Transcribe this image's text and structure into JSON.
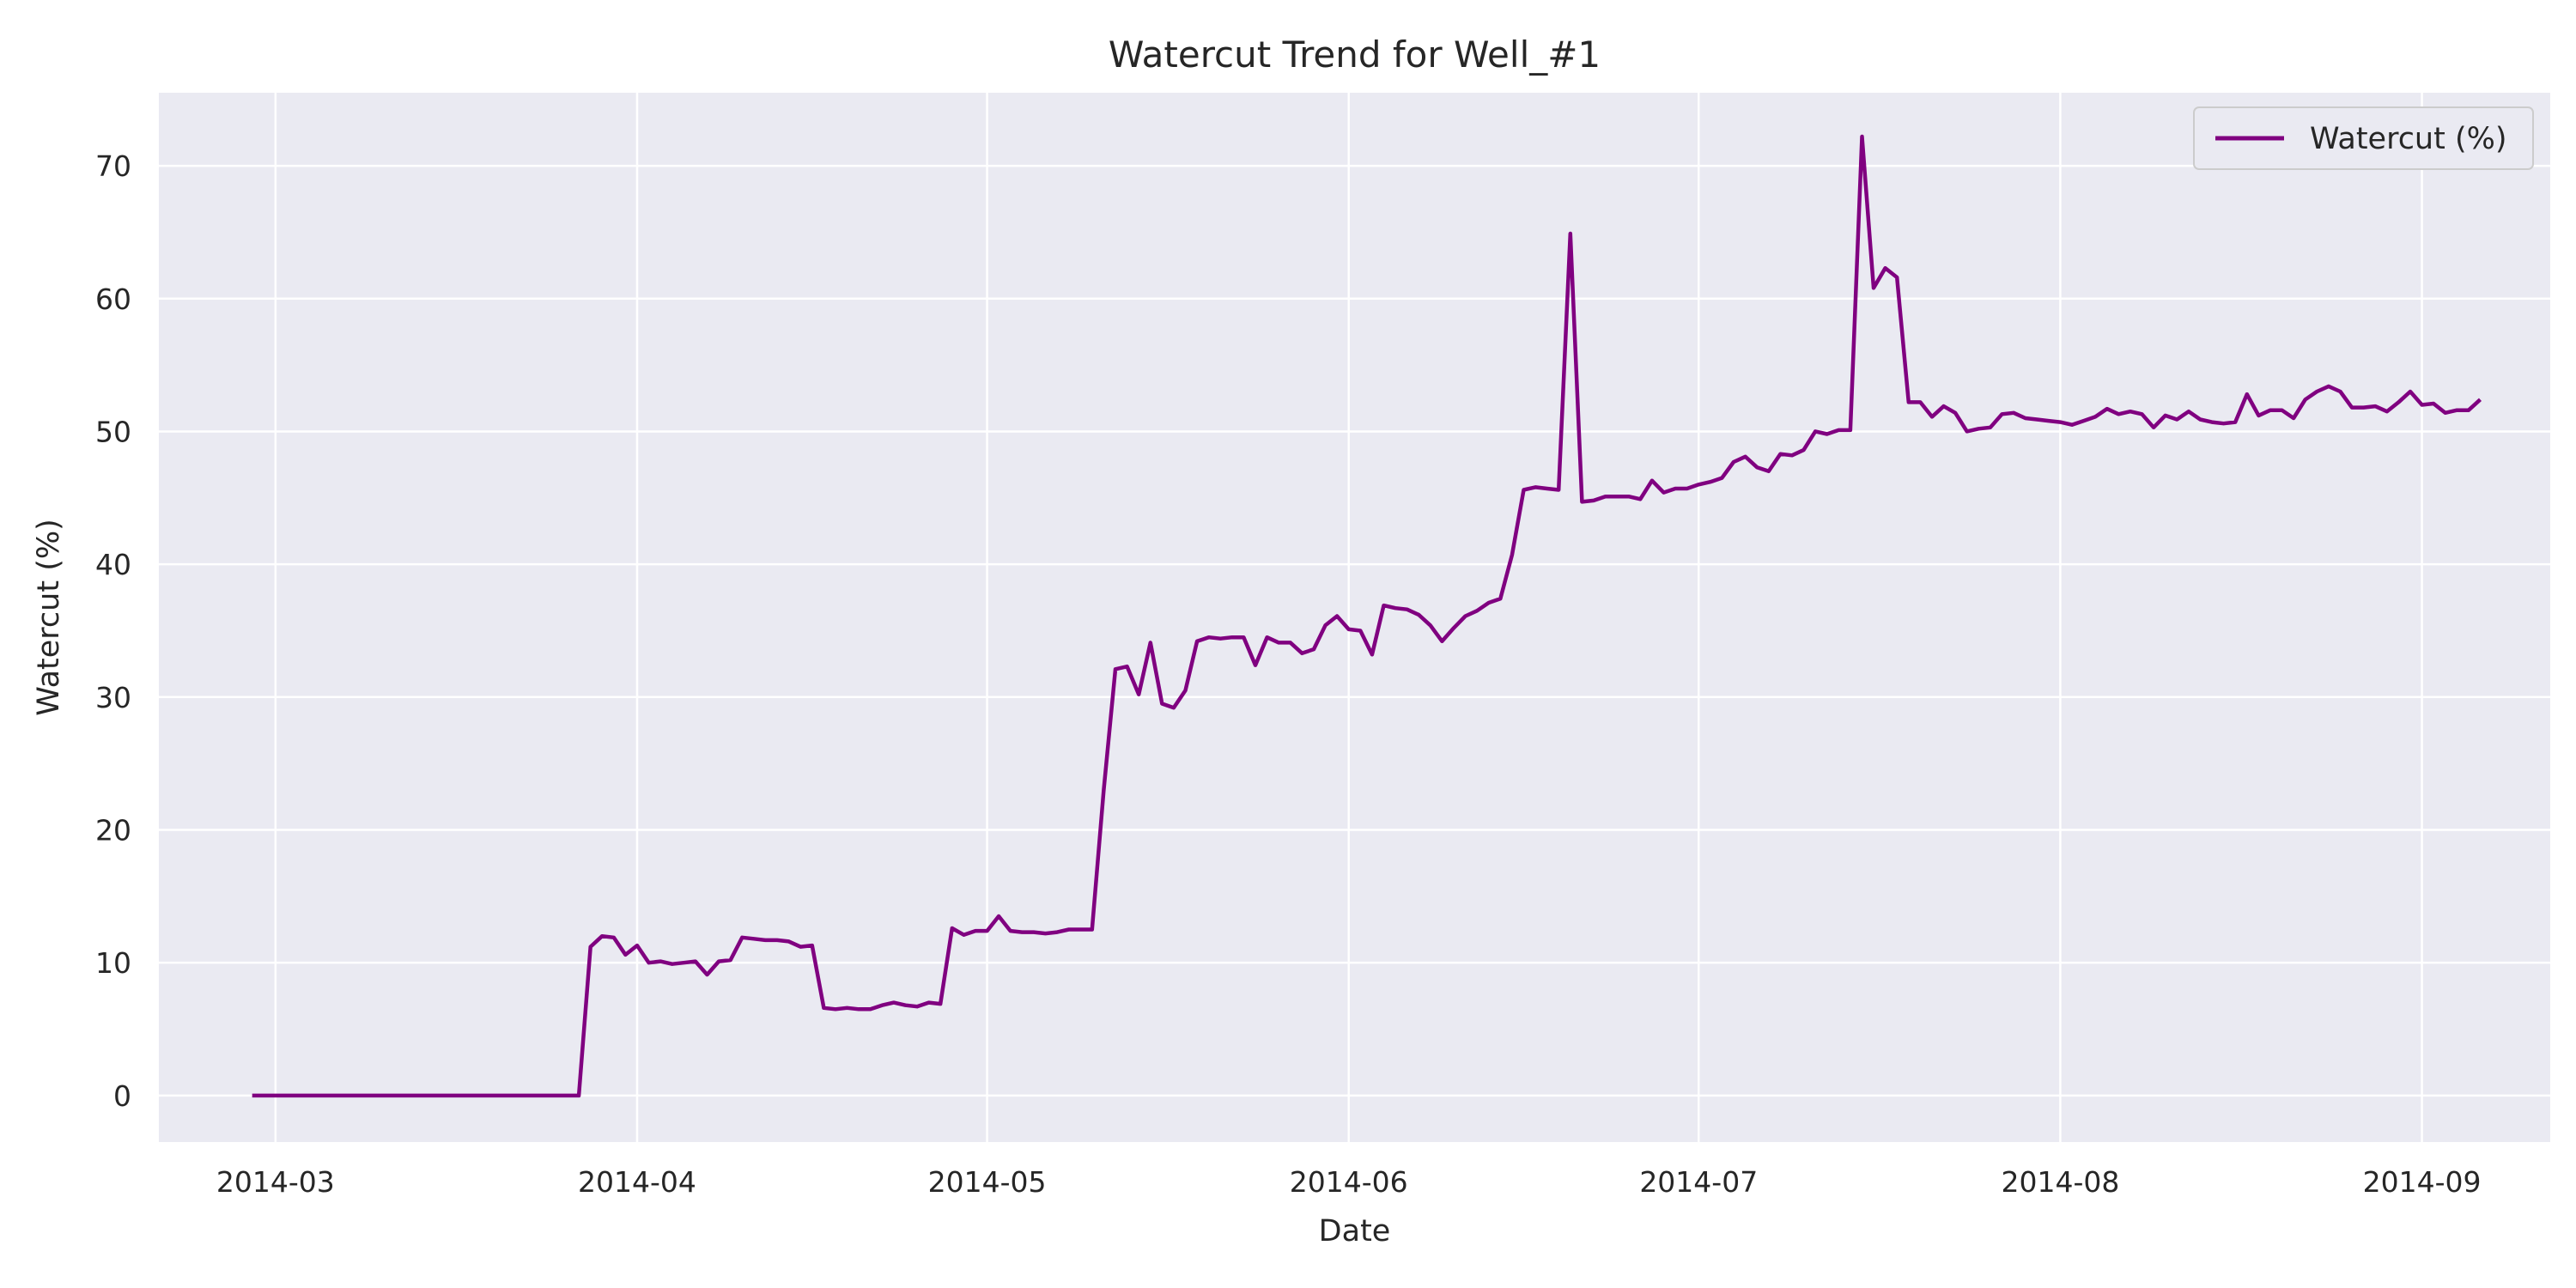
{
  "chart_data": {
    "type": "line",
    "title": "Watercut Trend for Well_#1",
    "xlabel": "Date",
    "ylabel": "Watercut (%)",
    "x_tick_labels": [
      "2014-03",
      "2014-04",
      "2014-05",
      "2014-06",
      "2014-07",
      "2014-08",
      "2014-09"
    ],
    "x_ticks": [
      "2014-03-01",
      "2014-04-01",
      "2014-05-01",
      "2014-06-01",
      "2014-07-01",
      "2014-08-01",
      "2014-09-01"
    ],
    "y_tick_labels": [
      "0",
      "10",
      "20",
      "30",
      "40",
      "50",
      "60",
      "70"
    ],
    "y_ticks": [
      0,
      10,
      20,
      30,
      40,
      50,
      60,
      70
    ],
    "xlim": [
      "2014-02-19",
      "2014-09-12"
    ],
    "ylim": [
      -3.5,
      75.5
    ],
    "grid": true,
    "legend_position": "top-right",
    "series": [
      {
        "name": "Watercut (%)",
        "color": "#800080",
        "points": [
          [
            "2014-02-27",
            0
          ],
          [
            "2014-03-27",
            0
          ],
          [
            "2014-03-28",
            11.2
          ],
          [
            "2014-03-29",
            12
          ],
          [
            "2014-03-30",
            11.9
          ],
          [
            "2014-03-31",
            10.6
          ],
          [
            "2014-04-01",
            11.3
          ],
          [
            "2014-04-02",
            10
          ],
          [
            "2014-04-03",
            10.1
          ],
          [
            "2014-04-04",
            9.9
          ],
          [
            "2014-04-05",
            10
          ],
          [
            "2014-04-06",
            10.1
          ],
          [
            "2014-04-07",
            9.1
          ],
          [
            "2014-04-08",
            10.1
          ],
          [
            "2014-04-09",
            10.2
          ],
          [
            "2014-04-10",
            11.9
          ],
          [
            "2014-04-11",
            11.8
          ],
          [
            "2014-04-12",
            11.7
          ],
          [
            "2014-04-13",
            11.7
          ],
          [
            "2014-04-14",
            11.6
          ],
          [
            "2014-04-15",
            11.2
          ],
          [
            "2014-04-16",
            11.3
          ],
          [
            "2014-04-17",
            6.6
          ],
          [
            "2014-04-18",
            6.5
          ],
          [
            "2014-04-19",
            6.6
          ],
          [
            "2014-04-20",
            6.5
          ],
          [
            "2014-04-21",
            6.5
          ],
          [
            "2014-04-22",
            6.8
          ],
          [
            "2014-04-23",
            7
          ],
          [
            "2014-04-24",
            6.8
          ],
          [
            "2014-04-25",
            6.7
          ],
          [
            "2014-04-26",
            7
          ],
          [
            "2014-04-27",
            6.9
          ],
          [
            "2014-04-28",
            12.6
          ],
          [
            "2014-04-29",
            12.1
          ],
          [
            "2014-04-30",
            12.4
          ],
          [
            "2014-05-01",
            12.4
          ],
          [
            "2014-05-02",
            13.5
          ],
          [
            "2014-05-03",
            12.4
          ],
          [
            "2014-05-04",
            12.3
          ],
          [
            "2014-05-05",
            12.3
          ],
          [
            "2014-05-06",
            12.2
          ],
          [
            "2014-05-07",
            12.3
          ],
          [
            "2014-05-08",
            12.5
          ],
          [
            "2014-05-09",
            12.5
          ],
          [
            "2014-05-10",
            12.5
          ],
          [
            "2014-05-11",
            23
          ],
          [
            "2014-05-12",
            32.1
          ],
          [
            "2014-05-13",
            32.3
          ],
          [
            "2014-05-14",
            30.2
          ],
          [
            "2014-05-15",
            34.1
          ],
          [
            "2014-05-16",
            29.5
          ],
          [
            "2014-05-17",
            29.2
          ],
          [
            "2014-05-18",
            30.5
          ],
          [
            "2014-05-19",
            34.2
          ],
          [
            "2014-05-20",
            34.5
          ],
          [
            "2014-05-21",
            34.4
          ],
          [
            "2014-05-22",
            34.5
          ],
          [
            "2014-05-23",
            34.5
          ],
          [
            "2014-05-24",
            32.4
          ],
          [
            "2014-05-25",
            34.5
          ],
          [
            "2014-05-26",
            34.1
          ],
          [
            "2014-05-27",
            34.1
          ],
          [
            "2014-05-28",
            33.3
          ],
          [
            "2014-05-29",
            33.6
          ],
          [
            "2014-05-30",
            35.4
          ],
          [
            "2014-05-31",
            36.1
          ],
          [
            "2014-06-01",
            35.1
          ],
          [
            "2014-06-02",
            35
          ],
          [
            "2014-06-03",
            33.2
          ],
          [
            "2014-06-04",
            36.9
          ],
          [
            "2014-06-05",
            36.7
          ],
          [
            "2014-06-06",
            36.6
          ],
          [
            "2014-06-07",
            36.2
          ],
          [
            "2014-06-08",
            35.4
          ],
          [
            "2014-06-09",
            34.2
          ],
          [
            "2014-06-10",
            35.2
          ],
          [
            "2014-06-11",
            36.1
          ],
          [
            "2014-06-12",
            36.5
          ],
          [
            "2014-06-13",
            37.1
          ],
          [
            "2014-06-14",
            37.4
          ],
          [
            "2014-06-15",
            40.7
          ],
          [
            "2014-06-16",
            45.6
          ],
          [
            "2014-06-17",
            45.8
          ],
          [
            "2014-06-18",
            45.7
          ],
          [
            "2014-06-19",
            45.6
          ],
          [
            "2014-06-20",
            64.9
          ],
          [
            "2014-06-21",
            44.7
          ],
          [
            "2014-06-22",
            44.8
          ],
          [
            "2014-06-23",
            45.1
          ],
          [
            "2014-06-24",
            45.1
          ],
          [
            "2014-06-25",
            45.1
          ],
          [
            "2014-06-26",
            44.9
          ],
          [
            "2014-06-27",
            46.3
          ],
          [
            "2014-06-28",
            45.4
          ],
          [
            "2014-06-29",
            45.7
          ],
          [
            "2014-06-30",
            45.7
          ],
          [
            "2014-07-01",
            46
          ],
          [
            "2014-07-02",
            46.2
          ],
          [
            "2014-07-03",
            46.5
          ],
          [
            "2014-07-04",
            47.7
          ],
          [
            "2014-07-05",
            48.1
          ],
          [
            "2014-07-06",
            47.3
          ],
          [
            "2014-07-07",
            47
          ],
          [
            "2014-07-08",
            48.3
          ],
          [
            "2014-07-09",
            48.2
          ],
          [
            "2014-07-10",
            48.6
          ],
          [
            "2014-07-11",
            50
          ],
          [
            "2014-07-12",
            49.8
          ],
          [
            "2014-07-13",
            50.1
          ],
          [
            "2014-07-14",
            50.1
          ],
          [
            "2014-07-15",
            72.2
          ],
          [
            "2014-07-16",
            60.8
          ],
          [
            "2014-07-17",
            62.3
          ],
          [
            "2014-07-18",
            61.6
          ],
          [
            "2014-07-19",
            52.2
          ],
          [
            "2014-07-20",
            52.2
          ],
          [
            "2014-07-21",
            51.1
          ],
          [
            "2014-07-22",
            51.9
          ],
          [
            "2014-07-23",
            51.4
          ],
          [
            "2014-07-24",
            50
          ],
          [
            "2014-07-25",
            50.2
          ],
          [
            "2014-07-26",
            50.3
          ],
          [
            "2014-07-27",
            51.3
          ],
          [
            "2014-07-28",
            51.4
          ],
          [
            "2014-07-29",
            51
          ],
          [
            "2014-07-30",
            50.9
          ],
          [
            "2014-07-31",
            50.8
          ],
          [
            "2014-08-01",
            50.7
          ],
          [
            "2014-08-02",
            50.5
          ],
          [
            "2014-08-03",
            50.8
          ],
          [
            "2014-08-04",
            51.1
          ],
          [
            "2014-08-05",
            51.7
          ],
          [
            "2014-08-06",
            51.3
          ],
          [
            "2014-08-07",
            51.5
          ],
          [
            "2014-08-08",
            51.3
          ],
          [
            "2014-08-09",
            50.3
          ],
          [
            "2014-08-10",
            51.2
          ],
          [
            "2014-08-11",
            50.9
          ],
          [
            "2014-08-12",
            51.5
          ],
          [
            "2014-08-13",
            50.9
          ],
          [
            "2014-08-14",
            50.7
          ],
          [
            "2014-08-15",
            50.6
          ],
          [
            "2014-08-16",
            50.7
          ],
          [
            "2014-08-17",
            52.8
          ],
          [
            "2014-08-18",
            51.2
          ],
          [
            "2014-08-19",
            51.6
          ],
          [
            "2014-08-20",
            51.6
          ],
          [
            "2014-08-21",
            51
          ],
          [
            "2014-08-22",
            52.4
          ],
          [
            "2014-08-23",
            53
          ],
          [
            "2014-08-24",
            53.4
          ],
          [
            "2014-08-25",
            53
          ],
          [
            "2014-08-26",
            51.8
          ],
          [
            "2014-08-27",
            51.8
          ],
          [
            "2014-08-28",
            51.9
          ],
          [
            "2014-08-29",
            51.5
          ],
          [
            "2014-08-30",
            52.2
          ],
          [
            "2014-08-31",
            53
          ],
          [
            "2014-09-01",
            52
          ],
          [
            "2014-09-02",
            52.1
          ],
          [
            "2014-09-03",
            51.4
          ],
          [
            "2014-09-04",
            51.6
          ],
          [
            "2014-09-05",
            51.6
          ],
          [
            "2014-09-06",
            52.4
          ]
        ]
      }
    ]
  }
}
